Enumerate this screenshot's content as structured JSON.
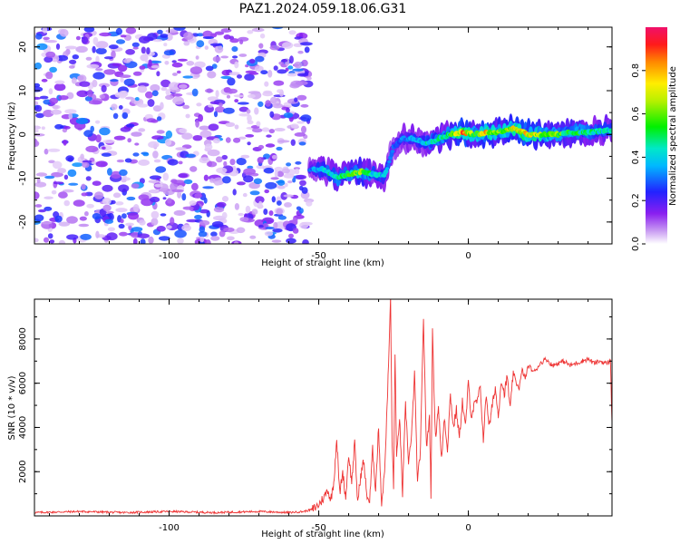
{
  "figure": {
    "title": "PAZ1.2024.059.18.06.G31"
  },
  "chart_data": [
    {
      "type": "heatmap",
      "xlabel": "Height of straight line (km)",
      "ylabel": "Frequency (Hz)",
      "xlim": [
        -145,
        48
      ],
      "ylim": [
        -25,
        24.5
      ],
      "x_ticks": [
        -100,
        -50,
        0
      ],
      "y_ticks": [
        -20,
        -10,
        0,
        10,
        20
      ],
      "colorbar": {
        "label": "Normalized spectral amplitude",
        "range": [
          0.0,
          1.0
        ],
        "ticks": [
          0.0,
          0.2,
          0.4,
          0.6,
          0.8
        ],
        "colormap": "rainbow (white-purple-blue-cyan-green-yellow-orange-red-magenta)"
      },
      "regions": [
        {
          "name": "noise",
          "x_range": [
            -145,
            -53
          ],
          "y_range": [
            -25,
            24.5
          ],
          "amplitude": [
            0.0,
            0.3
          ]
        },
        {
          "name": "signal",
          "x_range": [
            -53,
            48
          ]
        }
      ],
      "signal_track": {
        "x": [
          -53,
          -48,
          -44,
          -40,
          -36,
          -32,
          -28,
          -25,
          -22,
          -18,
          -14,
          -10,
          -6,
          -2,
          2,
          6,
          10,
          15,
          20,
          25,
          30,
          35,
          40,
          48
        ],
        "frequency": [
          -8,
          -8,
          -10,
          -9,
          -8.5,
          -9,
          -9.5,
          -3,
          -1,
          -1,
          -2,
          -1,
          0,
          0.5,
          0,
          0.5,
          0.5,
          1.5,
          0,
          0,
          0,
          0.5,
          0.5,
          1
        ],
        "amplitude": [
          0.3,
          0.45,
          0.5,
          0.55,
          0.65,
          0.45,
          0.4,
          0.3,
          0.35,
          0.4,
          0.45,
          0.5,
          0.55,
          0.9,
          0.55,
          0.8,
          0.6,
          0.75,
          0.8,
          0.65,
          0.6,
          0.55,
          0.5,
          0.45
        ]
      }
    },
    {
      "type": "line",
      "xlabel": "Height of straight line (km)",
      "ylabel": "SNR (10 * v/v)",
      "xlim": [
        -145,
        48
      ],
      "ylim": [
        0,
        9800
      ],
      "x_ticks": [
        -100,
        -50,
        0
      ],
      "y_ticks": [
        2000,
        4000,
        6000,
        8000
      ],
      "series": [
        {
          "color": "#ee3333",
          "x": [
            -145,
            -130,
            -115,
            -100,
            -85,
            -70,
            -60,
            -55,
            -52,
            -50,
            -48,
            -47,
            -46,
            -45,
            -44,
            -43,
            -42,
            -41,
            -40,
            -39,
            -38,
            -37,
            -36,
            -35,
            -34,
            -33,
            -32,
            -31,
            -30,
            -29,
            -28,
            -27,
            -26,
            -25.5,
            -25,
            -24.5,
            -24,
            -23,
            -22,
            -21,
            -20,
            -19,
            -18,
            -17,
            -16,
            -15,
            -14,
            -13,
            -12.5,
            -12,
            -11,
            -10,
            -9,
            -8,
            -7,
            -6,
            -5,
            -4,
            -3,
            -2,
            -1,
            0,
            1,
            2,
            3,
            4,
            5,
            6,
            7,
            8,
            9,
            10,
            11,
            12,
            13,
            14,
            15,
            16,
            17,
            18,
            19,
            20,
            22,
            24,
            26,
            28,
            30,
            32,
            34,
            36,
            38,
            40,
            42,
            44,
            46,
            47.5,
            48
          ],
          "values": [
            150,
            200,
            150,
            200,
            150,
            200,
            150,
            200,
            300,
            500,
            900,
            1200,
            700,
            1500,
            3500,
            1000,
            2000,
            800,
            2800,
            1500,
            3300,
            600,
            1800,
            2500,
            1000,
            600,
            3000,
            1200,
            4000,
            500,
            2000,
            5500,
            9800,
            3500,
            1200,
            7500,
            2500,
            4500,
            1000,
            5000,
            2500,
            3500,
            6500,
            1500,
            3000,
            9000,
            3000,
            4500,
            1000,
            8300,
            3500,
            5000,
            2500,
            4500,
            3000,
            5500,
            4000,
            4800,
            3500,
            5200,
            4000,
            6000,
            4500,
            5000,
            5200,
            5800,
            3500,
            5500,
            4000,
            5000,
            5800,
            4500,
            6200,
            5500,
            6300,
            4800,
            6500,
            6000,
            5800,
            6600,
            6200,
            6800,
            6500,
            6900,
            7100,
            6800,
            6900,
            7000,
            6800,
            6900,
            7000,
            7100,
            6900,
            7000,
            6900,
            7000,
            4200
          ]
        }
      ]
    }
  ]
}
